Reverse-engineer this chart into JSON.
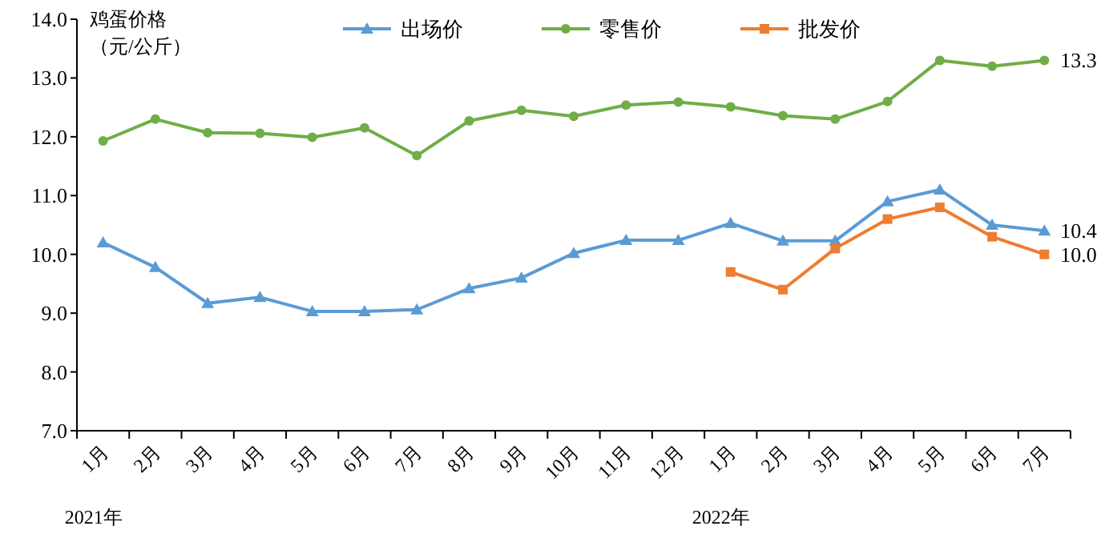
{
  "chart_data": {
    "type": "line",
    "ylabel": "鸡蛋价格（元/公斤）",
    "categories": [
      "1月",
      "2月",
      "3月",
      "4月",
      "5月",
      "6月",
      "7月",
      "8月",
      "9月",
      "10月",
      "11月",
      "12月",
      "1月",
      "2月",
      "3月",
      "4月",
      "5月",
      "6月",
      "7月"
    ],
    "ylim": [
      7,
      14
    ],
    "yticks": [
      {
        "value": 7,
        "label": "7.0"
      },
      {
        "value": 8,
        "label": "8.0"
      },
      {
        "value": 9,
        "label": "9.0"
      },
      {
        "value": 10,
        "label": "10.0"
      },
      {
        "value": 11,
        "label": "11.0"
      },
      {
        "value": 12,
        "label": "12.0"
      },
      {
        "value": 13,
        "label": "13.0"
      },
      {
        "value": 14,
        "label": "14.0"
      }
    ],
    "grid": false,
    "legend": "top",
    "line_style": "solid",
    "series": [
      {
        "name": "出场价",
        "color": "#5b9bd5",
        "marker": "triangle",
        "values": [
          10.2,
          9.78,
          9.17,
          9.27,
          9.03,
          9.03,
          9.06,
          9.42,
          9.6,
          10.02,
          10.24,
          10.24,
          10.53,
          10.23,
          10.23,
          10.9,
          11.1,
          10.5,
          10.4
        ],
        "value_labels": [
          null,
          null,
          null,
          null,
          null,
          null,
          null,
          null,
          null,
          null,
          null,
          null,
          null,
          null,
          null,
          null,
          null,
          null,
          "10.4"
        ]
      },
      {
        "name": "零售价",
        "color": "#70ad47",
        "marker": "circle",
        "values": [
          11.93,
          12.3,
          12.07,
          12.06,
          11.99,
          12.15,
          11.68,
          12.27,
          12.45,
          12.35,
          12.54,
          12.59,
          12.51,
          12.36,
          12.3,
          12.6,
          13.3,
          13.2,
          13.3
        ],
        "value_labels": [
          null,
          null,
          null,
          null,
          null,
          null,
          null,
          null,
          null,
          null,
          null,
          null,
          null,
          null,
          null,
          null,
          null,
          null,
          "13.3"
        ]
      },
      {
        "name": "批发价",
        "color": "#ed7d31",
        "marker": "square",
        "values": [
          null,
          null,
          null,
          null,
          null,
          null,
          null,
          null,
          null,
          null,
          null,
          null,
          9.7,
          9.4,
          10.1,
          10.6,
          10.8,
          10.3,
          10.0
        ],
        "value_labels": [
          null,
          null,
          null,
          null,
          null,
          null,
          null,
          null,
          null,
          null,
          null,
          null,
          null,
          null,
          null,
          null,
          null,
          null,
          "10.0"
        ]
      }
    ],
    "annotations": [
      "2021年",
      "2022年"
    ]
  }
}
